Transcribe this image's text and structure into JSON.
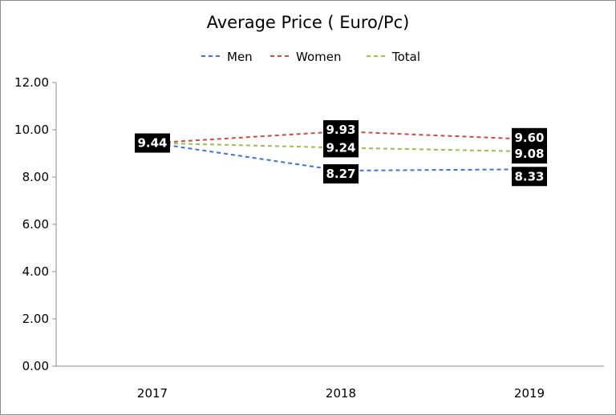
{
  "chart_data": {
    "type": "line",
    "title": "Average Price ( Euro/Pc)",
    "categories": [
      "2017",
      "2018",
      "2019"
    ],
    "series": [
      {
        "name": "Men",
        "values": [
          9.44,
          8.27,
          8.33
        ],
        "color": "#4472c4",
        "labeled": [
          false,
          true,
          true
        ]
      },
      {
        "name": "Women",
        "values": [
          9.44,
          9.93,
          9.6
        ],
        "color": "#c0504d",
        "labeled": [
          false,
          true,
          true
        ]
      },
      {
        "name": "Total",
        "values": [
          9.44,
          9.24,
          9.08
        ],
        "color": "#9bbb59",
        "labeled": [
          true,
          true,
          true
        ]
      }
    ],
    "ylim": [
      0,
      12
    ],
    "yticks": [
      "0.00",
      "2.00",
      "4.00",
      "6.00",
      "8.00",
      "10.00",
      "12.00"
    ],
    "legend_position": "top",
    "grid": false,
    "line_style": "dashed",
    "label_style": {
      "background": "#000000",
      "text": "#ffffff"
    }
  }
}
